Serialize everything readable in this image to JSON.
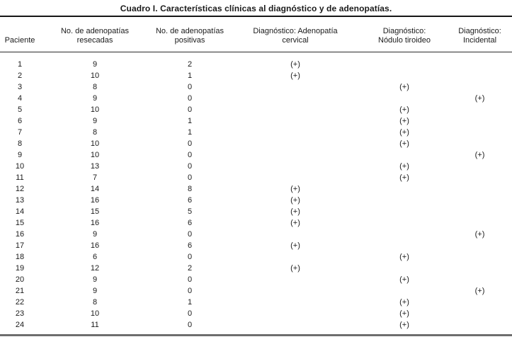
{
  "title": "Cuadro I. Características clínicas al diagnóstico y de adenopatías.",
  "positive_marker": "(+)",
  "colors": {
    "background": "#ffffff",
    "text": "#1a1a1a",
    "top_rule": "#161616",
    "header_rule": "#2a2a2a",
    "bottom_rule": "#6e6e6e"
  },
  "table": {
    "columns": [
      {
        "id": "paciente",
        "label": "Paciente"
      },
      {
        "id": "adenopatias-resecadas",
        "label": "No. de adenopatías\nresecadas"
      },
      {
        "id": "adenopatias-positivas",
        "label": "No. de adenopatías\npositivas"
      },
      {
        "id": "diagnostico-adenopatia-cervical",
        "label": "Diagnóstico: Adenopatía\ncervical"
      },
      {
        "id": "diagnostico-nodulo-tiroideo",
        "label": "Diagnóstico:\nNódulo tiroideo"
      },
      {
        "id": "diagnostico-incidental",
        "label": "Diagnóstico:\nIncidental"
      }
    ],
    "rows": [
      [
        "1",
        "9",
        "2",
        "(+)",
        "",
        ""
      ],
      [
        "2",
        "10",
        "1",
        "(+)",
        "",
        ""
      ],
      [
        "3",
        "8",
        "0",
        "",
        "(+)",
        ""
      ],
      [
        "4",
        "9",
        "0",
        "",
        "",
        "(+)"
      ],
      [
        "5",
        "10",
        "0",
        "",
        "(+)",
        ""
      ],
      [
        "6",
        "9",
        "1",
        "",
        "(+)",
        ""
      ],
      [
        "7",
        "8",
        "1",
        "",
        "(+)",
        ""
      ],
      [
        "8",
        "10",
        "0",
        "",
        "(+)",
        ""
      ],
      [
        "9",
        "10",
        "0",
        "",
        "",
        "(+)"
      ],
      [
        "10",
        "13",
        "0",
        "",
        "(+)",
        ""
      ],
      [
        "11",
        "7",
        "0",
        "",
        "(+)",
        ""
      ],
      [
        "12",
        "14",
        "8",
        "(+)",
        "",
        ""
      ],
      [
        "13",
        "16",
        "6",
        "(+)",
        "",
        ""
      ],
      [
        "14",
        "15",
        "5",
        "(+)",
        "",
        ""
      ],
      [
        "15",
        "16",
        "6",
        "(+)",
        "",
        ""
      ],
      [
        "16",
        "9",
        "0",
        "",
        "",
        "(+)"
      ],
      [
        "17",
        "16",
        "6",
        "(+)",
        "",
        ""
      ],
      [
        "18",
        "6",
        "0",
        "",
        "(+)",
        ""
      ],
      [
        "19",
        "12",
        "2",
        "(+)",
        "",
        ""
      ],
      [
        "20",
        "9",
        "0",
        "",
        "(+)",
        ""
      ],
      [
        "21",
        "9",
        "0",
        "",
        "",
        "(+)"
      ],
      [
        "22",
        "8",
        "1",
        "",
        "(+)",
        ""
      ],
      [
        "23",
        "10",
        "0",
        "",
        "(+)",
        ""
      ],
      [
        "24",
        "11",
        "0",
        "",
        "(+)",
        ""
      ]
    ]
  }
}
